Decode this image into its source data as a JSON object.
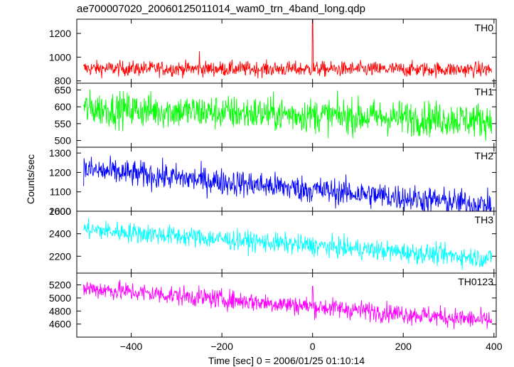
{
  "chart_data": {
    "type": "line",
    "title": "ae700007020_20060125011014_wam0_trn_4band_long.qdp",
    "xlabel": "Time [sec] 0 = 2006/01/25 01:10:14",
    "ylabel": "Counts/sec",
    "xlim": [
      -520,
      405
    ],
    "x_ticks": [
      -400,
      -200,
      0,
      200,
      400
    ],
    "x_tick_labels": [
      "−400",
      "−200",
      "0",
      "200",
      "400"
    ],
    "x_range": [
      -505,
      395
    ],
    "grid": false,
    "panels": [
      {
        "name": "TH0",
        "color": "#ff0000",
        "ylim": [
          780,
          1320
        ],
        "y_ticks": [
          800,
          1000,
          1200
        ],
        "start": 905,
        "end": 895,
        "noise": 32,
        "spikes": [
          {
            "x": 0,
            "y": 1320
          },
          {
            "x": -250,
            "y": 1050
          }
        ]
      },
      {
        "name": "TH1",
        "color": "#00ff00",
        "ylim": [
          480,
          670
        ],
        "y_ticks": [
          500,
          550,
          600,
          650
        ],
        "start": 595,
        "end": 560,
        "noise": 26,
        "spikes": []
      },
      {
        "name": "TH2",
        "color": "#0000ff",
        "ylim": [
          1000,
          1330
        ],
        "y_ticks": [
          1000,
          1100,
          1200,
          1300
        ],
        "start": 1215,
        "end": 1030,
        "noise": 35,
        "spikes": []
      },
      {
        "name": "TH3",
        "color": "#00ffff",
        "ylim": [
          2050,
          2600
        ],
        "y_ticks": [
          2200,
          2400,
          2600
        ],
        "start": 2440,
        "end": 2180,
        "noise": 45,
        "spikes": []
      },
      {
        "name": "TH0123",
        "color": "#ff00ff",
        "ylim": [
          4400,
          5380
        ],
        "y_ticks": [
          4600,
          4800,
          5000,
          5200
        ],
        "start": 5150,
        "end": 4650,
        "noise": 75,
        "spikes": [
          {
            "x": 0,
            "y": 5180
          }
        ]
      }
    ]
  }
}
